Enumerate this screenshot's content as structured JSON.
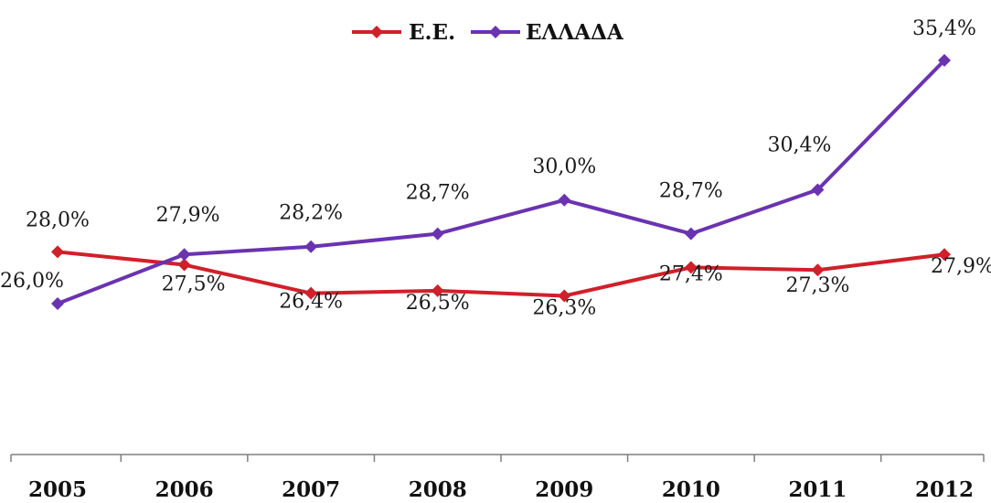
{
  "chart_data": {
    "type": "line",
    "x": [
      "2005",
      "2006",
      "2007",
      "2008",
      "2009",
      "2010",
      "2011",
      "2012"
    ],
    "series": [
      {
        "name": "Ε.Ε.",
        "color": "#d0202a",
        "values": [
          28.0,
          27.5,
          26.4,
          26.5,
          26.3,
          27.4,
          27.3,
          27.9
        ],
        "labels": [
          "28,0%",
          "27,5%",
          "26,4%",
          "26,5%",
          "26,3%",
          "27,4%",
          "27,3%",
          "27,9%"
        ]
      },
      {
        "name": "ΕΛΛΑΔΑ",
        "color": "#6a33b0",
        "values": [
          26.0,
          27.9,
          28.2,
          28.7,
          30.0,
          28.7,
          30.4,
          35.4
        ],
        "labels": [
          "26,0%",
          "27,9%",
          "28,2%",
          "28,7%",
          "30,0%",
          "28,7%",
          "30,4%",
          "35,4%"
        ]
      }
    ],
    "legend_position": "top-center",
    "grid": false
  }
}
